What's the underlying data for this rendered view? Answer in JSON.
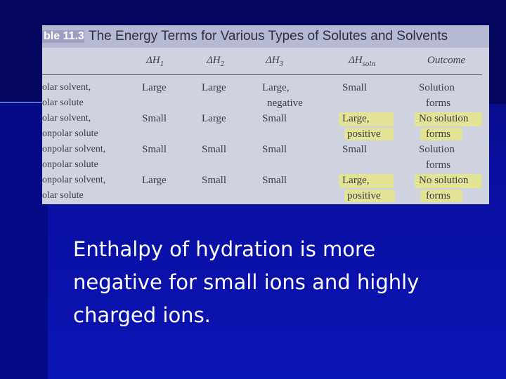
{
  "table": {
    "number": "ble 11.3",
    "caption": "The Energy Terms for Various Types of Solutes and Solvents",
    "headers": [
      "ΔH",
      "1",
      "ΔH",
      "2",
      "ΔH",
      "3",
      "ΔH",
      "soln",
      "Outcome"
    ],
    "rows": [
      {
        "label": [
          "olar solvent,",
          "olar solute"
        ],
        "dh1": "Large",
        "dh2": "Large",
        "dh3": [
          "Large,",
          "negative"
        ],
        "dhsoln": [
          "Small"
        ],
        "outcome": [
          "Solution",
          "forms"
        ]
      },
      {
        "label": [
          "olar solvent,",
          "onpolar solute"
        ],
        "dh1": "Small",
        "dh2": "Large",
        "dh3": [
          "Small"
        ],
        "dhsoln": [
          "Large,",
          "positive"
        ],
        "outcome": [
          "No solution",
          "forms"
        ]
      },
      {
        "label": [
          "onpolar solvent,",
          "onpolar solute"
        ],
        "dh1": "Small",
        "dh2": "Small",
        "dh3": [
          "Small"
        ],
        "dhsoln": [
          "Small"
        ],
        "outcome": [
          "Solution",
          "forms"
        ]
      },
      {
        "label": [
          "onpolar solvent,",
          "olar solute"
        ],
        "dh1": "Large",
        "dh2": "Small",
        "dh3": [
          "Small"
        ],
        "dhsoln": [
          "Large,",
          "positive"
        ],
        "outcome": [
          "No solution",
          "forms"
        ]
      }
    ],
    "highlight_color": "#f4f05a"
  },
  "body": {
    "line1": "Enthalpy of hydration is more",
    "line2": "negative for small ions and highly",
    "line3": "charged ions."
  }
}
